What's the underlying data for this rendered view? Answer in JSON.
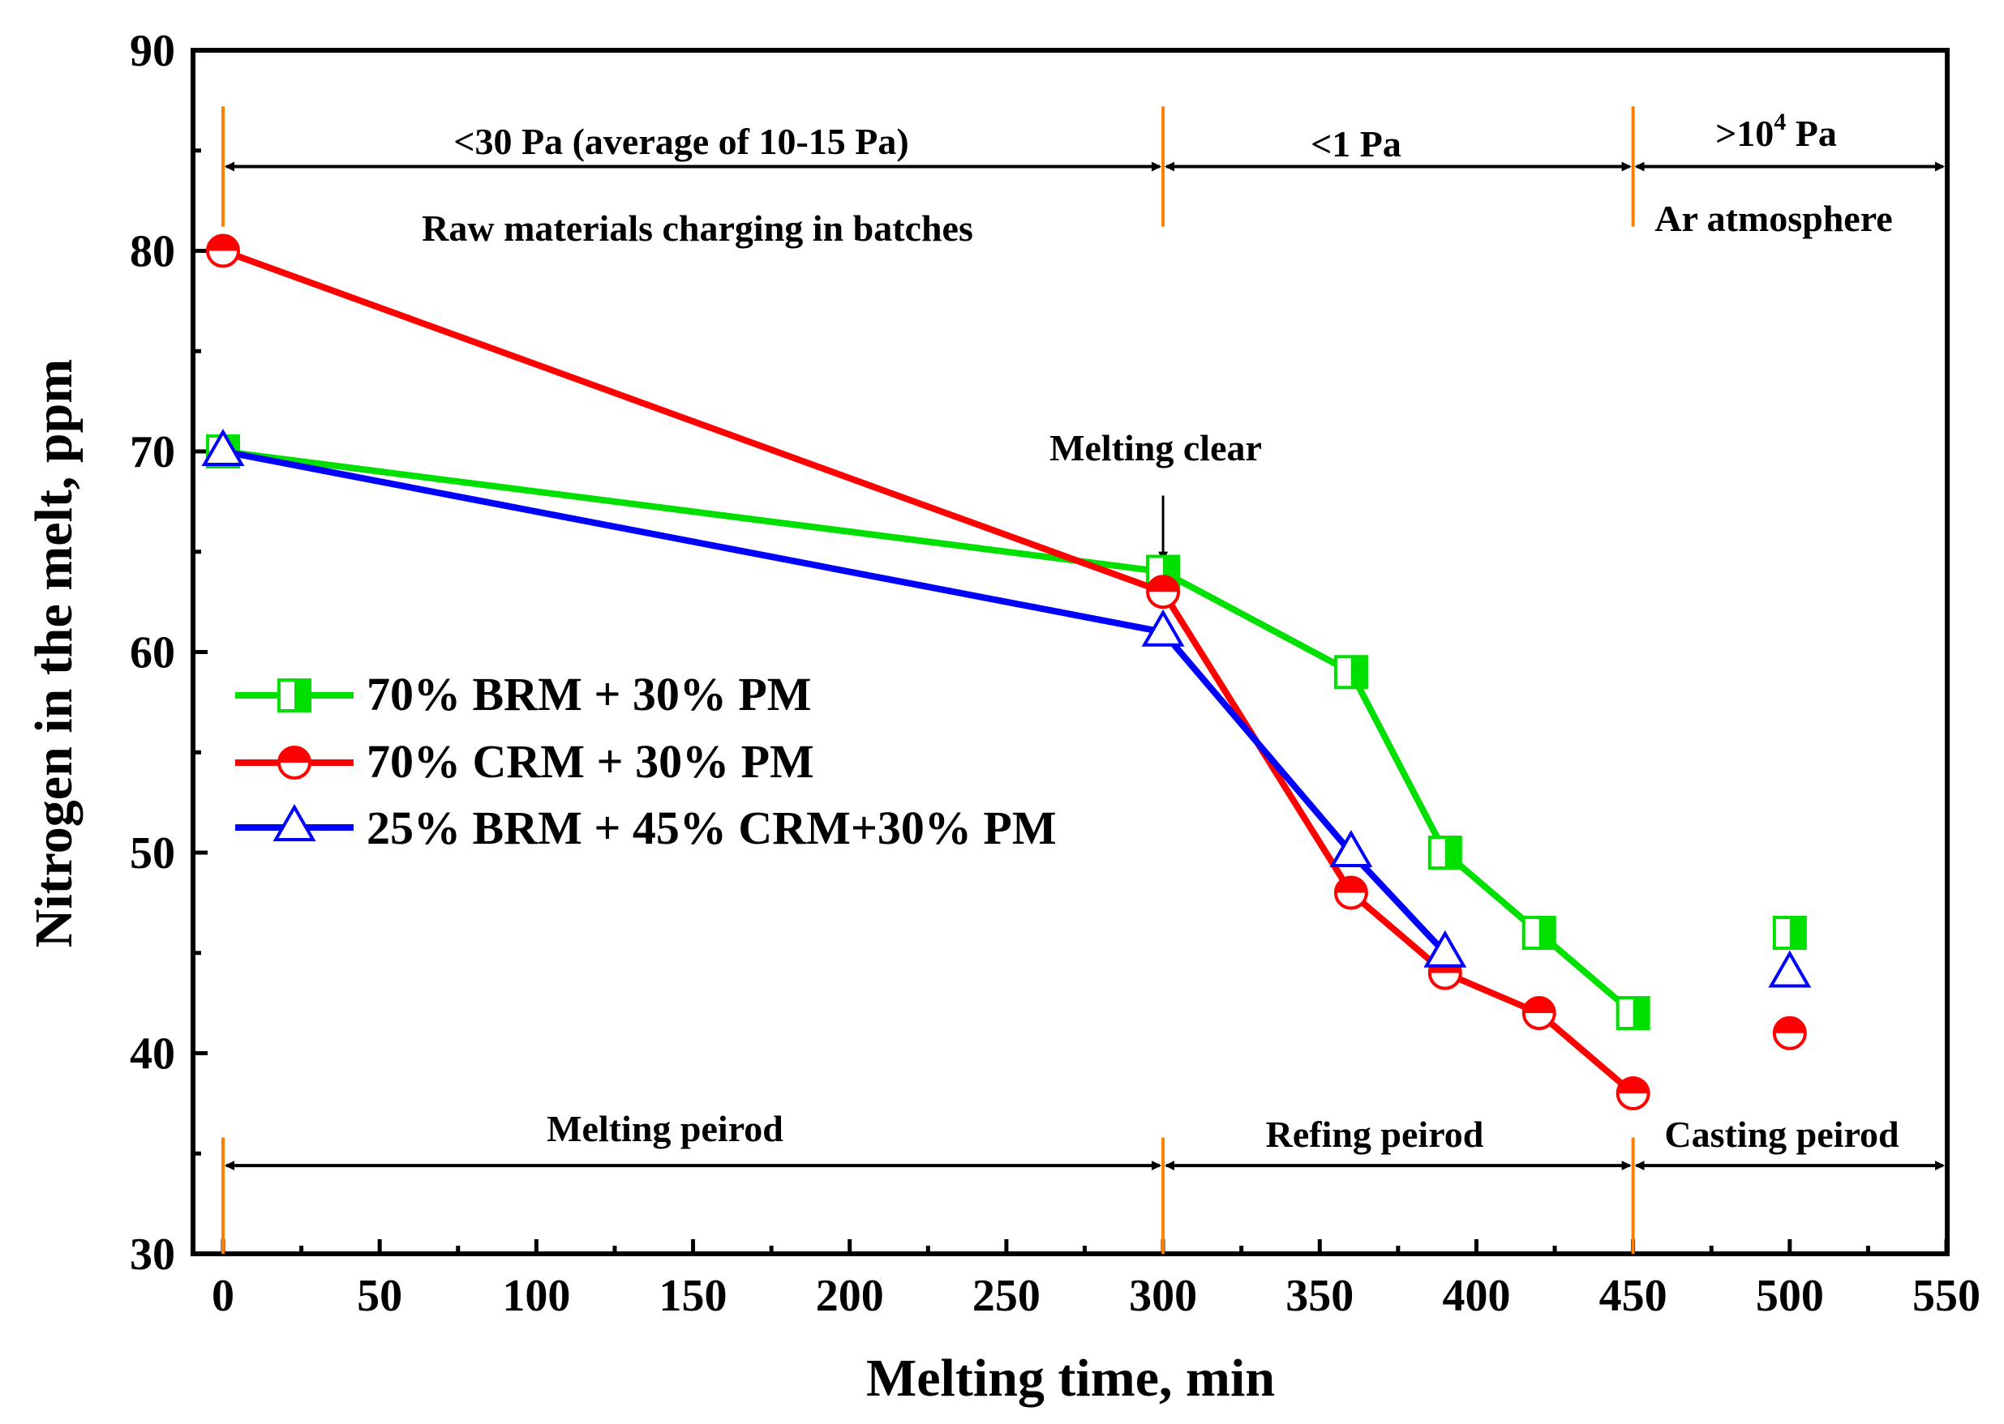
{
  "chart_data": {
    "type": "line",
    "xlabel": "Melting time, min",
    "ylabel": "Nitrogen in the melt, ppm",
    "xlim": [
      -10,
      550
    ],
    "ylim": [
      30,
      90
    ],
    "x_ticks": [
      0,
      50,
      100,
      150,
      200,
      250,
      300,
      350,
      400,
      450,
      500,
      550
    ],
    "y_ticks": [
      30,
      40,
      50,
      60,
      70,
      80,
      90
    ],
    "x_tick_labels": [
      "0",
      "50",
      "100",
      "150",
      "200",
      "250",
      "300",
      "350",
      "400",
      "450",
      "500",
      "550"
    ],
    "y_tick_labels": [
      "30",
      "40",
      "50",
      "60",
      "70",
      "80",
      "90"
    ],
    "legend_position": "center-left",
    "series": [
      {
        "name": "70% BRM + 30% PM",
        "color": "#00e000",
        "marker": "square-half",
        "x": [
          0,
          300,
          360,
          390,
          420,
          450,
          500
        ],
        "y": [
          70,
          64,
          59,
          50,
          46,
          42,
          46
        ],
        "connected_points": 6
      },
      {
        "name": "70% CRM + 30% PM",
        "color": "#ff0000",
        "marker": "circle-half",
        "x": [
          0,
          300,
          360,
          390,
          420,
          450,
          500
        ],
        "y": [
          80,
          63,
          48,
          44,
          42,
          38,
          41
        ],
        "connected_points": 6
      },
      {
        "name": "25% BRM + 45% CRM+30% PM",
        "color": "#0000ff",
        "marker": "triangle",
        "x": [
          0,
          300,
          360,
          390,
          500
        ],
        "y": [
          70,
          61,
          50,
          45,
          44
        ],
        "connected_points": 4
      }
    ],
    "boundaries": {
      "color": "#ff8000",
      "x": [
        0,
        300,
        450
      ]
    },
    "top_annotations": {
      "pressure": [
        {
          "label": "<30 Pa (average of 10-15 Pa)",
          "x_from": 0,
          "x_to": 300
        },
        {
          "label": "<1 Pa",
          "x_from": 300,
          "x_to": 450
        },
        {
          "label": ">10",
          "superscript": "4",
          "suffix": " Pa",
          "x_from": 450,
          "x_to": 550
        }
      ],
      "stage": [
        {
          "label": "Raw materials charging in batches"
        },
        {
          "label": "Ar atmosphere"
        }
      ],
      "pressure_arrow_y": 84.2
    },
    "bottom_annotations": {
      "periods": [
        {
          "label": "Melting peirod",
          "x_from": 0,
          "x_to": 300
        },
        {
          "label": "Refing peirod",
          "x_from": 300,
          "x_to": 450
        },
        {
          "label": "Casting peirod",
          "x_from": 450,
          "x_to": 550
        }
      ],
      "arrow_y": 34.4
    },
    "callout": {
      "label": "Melting clear",
      "x": 300,
      "y_from": 67.8,
      "y_to": 64.6
    }
  }
}
